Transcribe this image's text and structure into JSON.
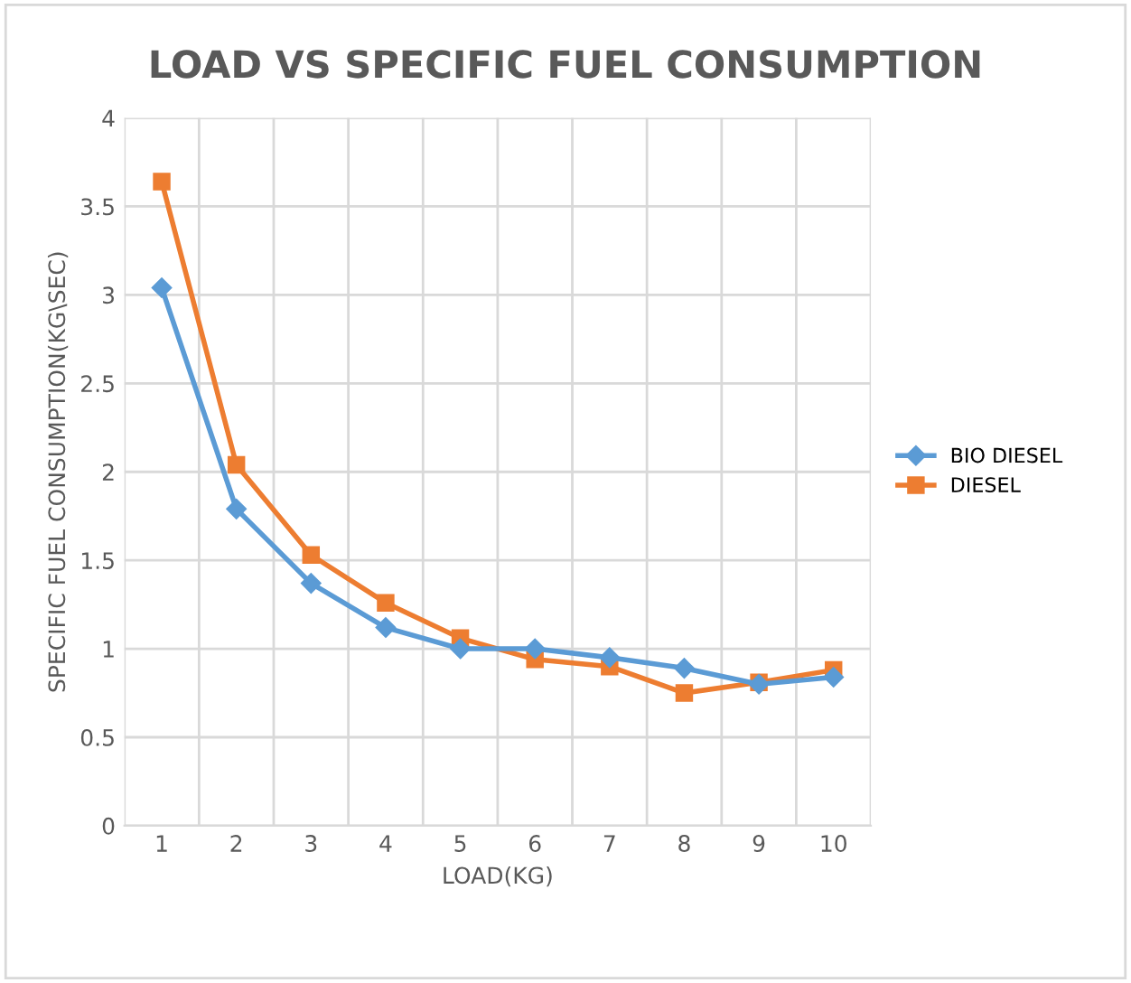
{
  "chart_data": {
    "type": "line",
    "title": "LOAD VS SPECIFIC FUEL CONSUMPTION",
    "xlabel": "LOAD(KG)",
    "ylabel": "SPECIFIC FUEL CONSUMPTION(KG\\SEC)",
    "categories": [
      "1",
      "2",
      "3",
      "4",
      "5",
      "6",
      "7",
      "8",
      "9",
      "10"
    ],
    "series": [
      {
        "name": "BIO DIESEL",
        "color": "#5b9bd5",
        "marker": "diamond",
        "values": [
          3.04,
          1.79,
          1.37,
          1.12,
          1.0,
          1.0,
          0.95,
          0.89,
          0.8,
          0.84
        ]
      },
      {
        "name": "DIESEL",
        "color": "#ed7d31",
        "marker": "square",
        "values": [
          3.64,
          2.04,
          1.53,
          1.26,
          1.06,
          0.94,
          0.9,
          0.75,
          0.81,
          0.88
        ]
      }
    ],
    "ylim": [
      0,
      4
    ],
    "yticks": [
      0,
      0.5,
      1,
      1.5,
      2,
      2.5,
      3,
      3.5,
      4
    ],
    "grid": true,
    "legend": "right",
    "line_style": "solid"
  }
}
